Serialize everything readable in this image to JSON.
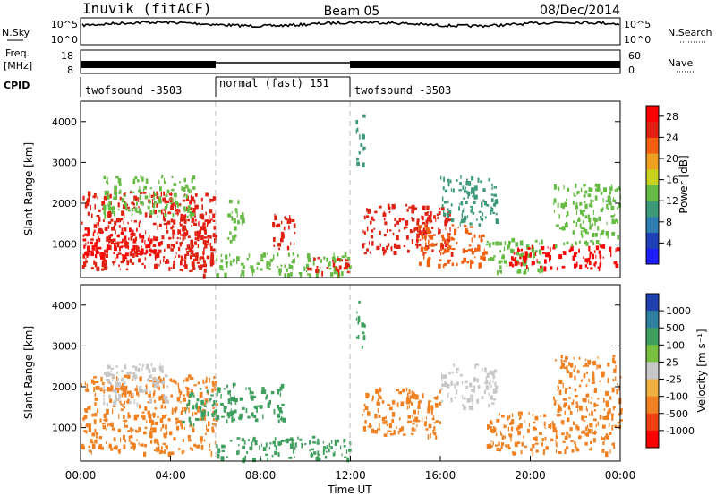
{
  "header": {
    "station": "Inuvik (fitACF)",
    "beam": "Beam 05",
    "date": "08/Dec/2014"
  },
  "noise_panel": {
    "left_label": "N.Sky",
    "right_label": "N.Search",
    "left_ticks": [
      "10^5",
      "10^0"
    ],
    "right_ticks": [
      "10^5",
      "10^0"
    ]
  },
  "freq_panel": {
    "left_label_line1": "Freq.",
    "left_label_line2": "[MHz]",
    "right_label": "Nave",
    "left_ticks": [
      "18",
      "8"
    ],
    "right_ticks": [
      "60",
      "0"
    ]
  },
  "cpid_panel": {
    "label": "CPID",
    "segments": [
      {
        "text": "twofsound -3503",
        "start_hour": 0,
        "end_hour": 6
      },
      {
        "text": "normal (fast) 151",
        "start_hour": 6,
        "end_hour": 12
      },
      {
        "text": "twofsound -3503",
        "start_hour": 12,
        "end_hour": 24
      }
    ]
  },
  "colors": {
    "power_scale": [
      "#1e1eff",
      "#2040b8",
      "#2e7db0",
      "#3c9a78",
      "#66bb44",
      "#c8d020",
      "#f0a020",
      "#f06010",
      "#e02010",
      "#ff0000"
    ],
    "velocity_scale": [
      "#ff0000",
      "#ee4010",
      "#f08020",
      "#f0b040",
      "#c8c8c8",
      "#7ac040",
      "#3f9f5f",
      "#2f7fa0",
      "#2040b0"
    ]
  },
  "chart_data": [
    {
      "type": "heatmap",
      "title": "Power",
      "ylabel": "Slant Range [km]",
      "xlim": [
        0,
        24
      ],
      "ylim": [
        180,
        4500
      ],
      "yticks": [
        1000,
        2000,
        3000,
        4000
      ],
      "colorbar_label": "Power [dB]",
      "colorbar_ticks": [
        4,
        8,
        12,
        16,
        20,
        24,
        28
      ],
      "colorbar_range": [
        0,
        30
      ],
      "regions": [
        {
          "t0": 0.0,
          "t1": 6.0,
          "r0": 400,
          "r1": 2300,
          "level": 24
        },
        {
          "t0": 0.0,
          "t1": 3.5,
          "r0": 700,
          "r1": 1400,
          "level": 28
        },
        {
          "t0": 4.0,
          "t1": 6.0,
          "r0": 900,
          "r1": 1900,
          "level": 26
        },
        {
          "t0": 1.0,
          "t1": 5.0,
          "r0": 1700,
          "r1": 2700,
          "level": 14
        },
        {
          "t0": 4.5,
          "t1": 5.5,
          "r0": 250,
          "r1": 800,
          "level": 24
        },
        {
          "t0": 6.0,
          "t1": 12.0,
          "r0": 250,
          "r1": 800,
          "level": 14
        },
        {
          "t0": 6.5,
          "t1": 7.2,
          "r0": 1100,
          "r1": 2100,
          "level": 14
        },
        {
          "t0": 8.5,
          "t1": 9.5,
          "r0": 900,
          "r1": 1800,
          "level": 24
        },
        {
          "t0": 10.0,
          "t1": 12.0,
          "r0": 300,
          "r1": 700,
          "level": 26
        },
        {
          "t0": 12.2,
          "t1": 12.6,
          "r0": 3000,
          "r1": 4200,
          "level": 10
        },
        {
          "t0": 12.5,
          "t1": 16.5,
          "r0": 800,
          "r1": 2000,
          "level": 24
        },
        {
          "t0": 15.0,
          "t1": 18.0,
          "r0": 500,
          "r1": 1500,
          "level": 22
        },
        {
          "t0": 16.0,
          "t1": 18.5,
          "r0": 1500,
          "r1": 2700,
          "level": 10
        },
        {
          "t0": 18.0,
          "t1": 20.5,
          "r0": 300,
          "r1": 1200,
          "level": 14
        },
        {
          "t0": 19.0,
          "t1": 24.0,
          "r0": 400,
          "r1": 1000,
          "level": 28
        },
        {
          "t0": 21.0,
          "t1": 24.0,
          "r0": 1000,
          "r1": 2500,
          "level": 12
        }
      ]
    },
    {
      "type": "heatmap",
      "title": "Velocity",
      "ylabel": "Slant Range [km]",
      "xlabel": "Time UT",
      "xlim": [
        0,
        24
      ],
      "ylim": [
        180,
        4500
      ],
      "yticks": [
        1000,
        2000,
        3000,
        4000
      ],
      "xticks": [
        "00:00",
        "04:00",
        "08:00",
        "12:00",
        "16:00",
        "20:00",
        "00:00"
      ],
      "colorbar_label": "Velocity [m s⁻¹]",
      "colorbar_ticks": [
        "1000",
        "500",
        "100",
        "25",
        "-25",
        "-100",
        "-500",
        "-1000"
      ],
      "regions": [
        {
          "t0": 0.0,
          "t1": 6.0,
          "r0": 400,
          "r1": 2300,
          "level": -300
        },
        {
          "t0": 1.0,
          "t1": 4.0,
          "r0": 1600,
          "r1": 2600,
          "level": 0
        },
        {
          "t0": 4.5,
          "t1": 6.0,
          "r0": 1100,
          "r1": 2000,
          "level": 150
        },
        {
          "t0": 6.0,
          "t1": 9.0,
          "r0": 1200,
          "r1": 2100,
          "level": 200
        },
        {
          "t0": 6.0,
          "t1": 12.0,
          "r0": 250,
          "r1": 800,
          "level": 200
        },
        {
          "t0": 12.2,
          "t1": 12.6,
          "r0": 3000,
          "r1": 4200,
          "level": 200
        },
        {
          "t0": 12.5,
          "t1": 16.0,
          "r0": 800,
          "r1": 2000,
          "level": -200
        },
        {
          "t0": 16.0,
          "t1": 18.5,
          "r0": 1500,
          "r1": 2600,
          "level": 0
        },
        {
          "t0": 18.0,
          "t1": 24.0,
          "r0": 400,
          "r1": 1400,
          "level": -300
        },
        {
          "t0": 21.0,
          "t1": 24.0,
          "r0": 1400,
          "r1": 2800,
          "level": -150
        }
      ]
    }
  ]
}
